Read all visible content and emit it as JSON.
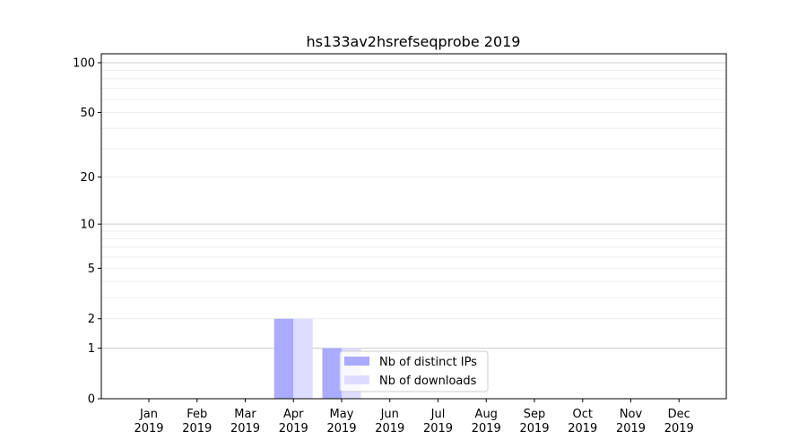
{
  "chart_data": {
    "type": "bar",
    "title": "hs133av2hsrefseqprobe 2019",
    "xlabel": "",
    "ylabel": "",
    "y_scale": "symlog (log of 1+y)",
    "ylim": [
      0,
      113
    ],
    "y_ticks": [
      0,
      1,
      2,
      5,
      10,
      20,
      50,
      100
    ],
    "grid": "horizontal, major at 1/10/100, minor light",
    "legend_position": "lower-center",
    "categories": [
      "Jan\n2019",
      "Feb\n2019",
      "Mar\n2019",
      "Apr\n2019",
      "May\n2019",
      "Jun\n2019",
      "Jul\n2019",
      "Aug\n2019",
      "Sep\n2019",
      "Oct\n2019",
      "Nov\n2019",
      "Dec\n2019"
    ],
    "series": [
      {
        "name": "Nb of distinct IPs",
        "color": "#aaaaff",
        "values": [
          0,
          0,
          0,
          2,
          1,
          0,
          0,
          0,
          0,
          0,
          0,
          0
        ]
      },
      {
        "name": "Nb of downloads",
        "color": "#ddddff",
        "values": [
          0,
          0,
          0,
          2,
          1,
          0,
          0,
          0,
          0,
          0,
          0,
          0
        ]
      }
    ]
  }
}
